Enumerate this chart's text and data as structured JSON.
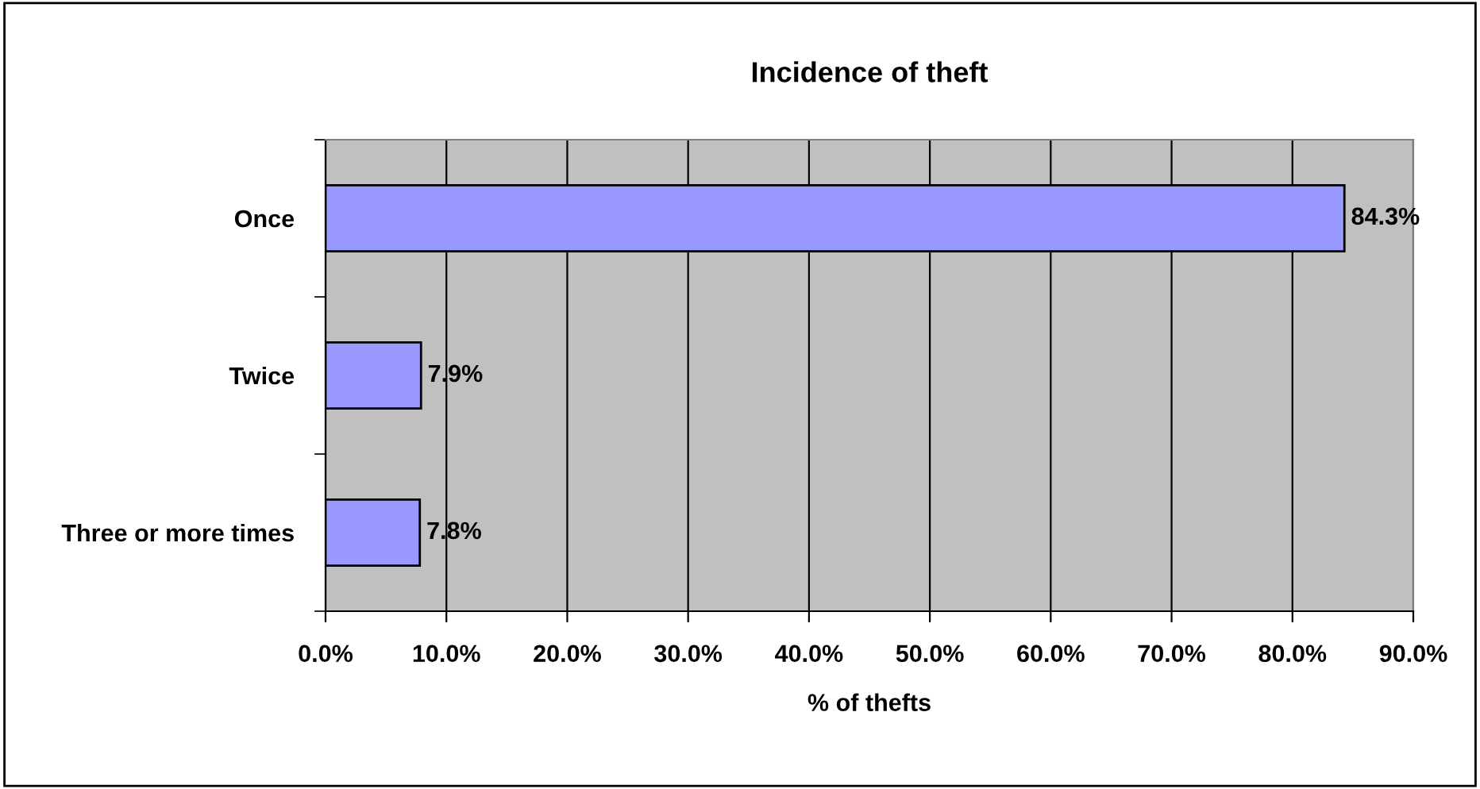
{
  "chart_data": {
    "type": "bar",
    "orientation": "horizontal",
    "title": "Incidence of theft",
    "xlabel": "% of thefts",
    "categories": [
      "Once",
      "Twice",
      "Three or more times"
    ],
    "values": [
      84.3,
      7.9,
      7.8
    ],
    "color": "#9999ff",
    "value_labels": [
      "84.3%",
      "7.9%",
      "7.8%"
    ],
    "xlim": [
      0,
      90
    ],
    "xticks": [
      {
        "value": 0,
        "label": "0.0%"
      },
      {
        "value": 10,
        "label": "10.0%"
      },
      {
        "value": 20,
        "label": "20.0%"
      },
      {
        "value": 30,
        "label": "30.0%"
      },
      {
        "value": 40,
        "label": "40.0%"
      },
      {
        "value": 50,
        "label": "50.0%"
      },
      {
        "value": 60,
        "label": "60.0%"
      },
      {
        "value": 70,
        "label": "70.0%"
      },
      {
        "value": 80,
        "label": "80.0%"
      },
      {
        "value": 90,
        "label": "90.0%"
      }
    ],
    "grid": "x",
    "legend": false
  }
}
